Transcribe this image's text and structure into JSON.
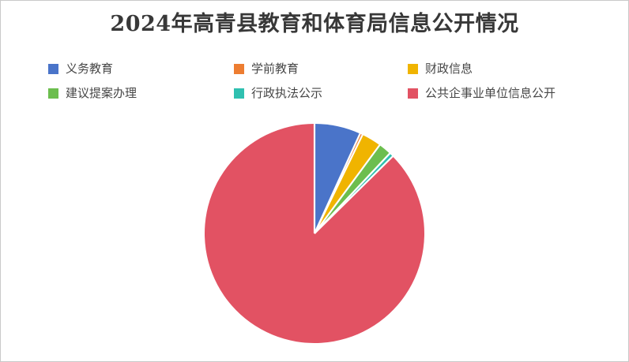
{
  "frame": {
    "background": "#ffffff",
    "border_color": "#c9c9c9"
  },
  "chart_data": {
    "type": "pie",
    "title": "2024年高青县教育和体育局信息公开情况",
    "labels": [
      "义务教育",
      "学前教育",
      "财政信息",
      "建议提案办理",
      "行政执法公示",
      "公共企事业单位信息公开"
    ],
    "values": [
      6.8,
      0.4,
      2.9,
      1.9,
      0.6,
      87.4
    ],
    "unit": "percent of total (estimated from slice angles; no data labels shown in chart)",
    "colors": [
      "#4a74c9",
      "#ed7d31",
      "#f0b400",
      "#6cbe4e",
      "#2fc0b0",
      "#e25263"
    ],
    "legend_position": "top, two rows of three items",
    "start_angle": "12 o'clock, clockwise",
    "slice_separator_color": "#ffffff",
    "title_color": "#383838",
    "legend_text_color": "#474747"
  }
}
